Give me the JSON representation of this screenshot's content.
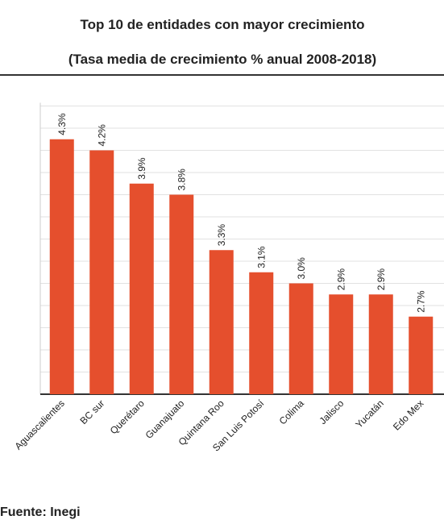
{
  "chart_data": {
    "type": "bar",
    "title": "Top 10 de entidades con mayor crecimiento",
    "subtitle": "(Tasa media de crecimiento % anual 2008-2018)",
    "source": "Fuente: Inegi",
    "categories": [
      "Aguascalientes",
      "BC sur",
      "Querétaro",
      "Guanajuato",
      "Quintana Roo",
      "San Luis Potosí",
      "Colima",
      "Jalisco",
      "Yucatán",
      "Edo Mex"
    ],
    "values": [
      4.3,
      4.2,
      3.9,
      3.8,
      3.3,
      3.1,
      3.0,
      2.9,
      2.9,
      2.7
    ],
    "value_labels": [
      "4.3%",
      "4.2%",
      "3.9%",
      "3.8%",
      "3.3%",
      "3.1%",
      "3.0%",
      "2.9%",
      "2.9%",
      "2.7%"
    ],
    "color": "#e54f2d",
    "ylim": [
      2,
      4.6
    ],
    "yticks": [
      2,
      2.2,
      2.4,
      2.6,
      2.8,
      3,
      3.2,
      3.4,
      3.6,
      3.8,
      4,
      4.2,
      4.4,
      4.6
    ],
    "grid": true
  }
}
